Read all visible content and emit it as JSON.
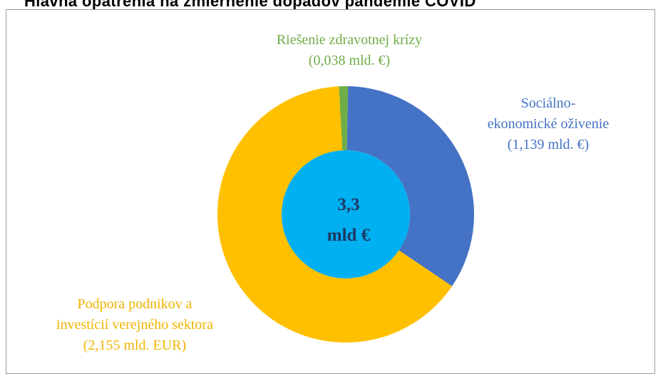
{
  "header": {
    "title_fragment": "Hlavná opatrenia na zmiernenie dopadov pandémie COVID"
  },
  "chart_data": {
    "type": "pie",
    "title": "",
    "center_label": {
      "line1": "3,3",
      "line2": "mld €"
    },
    "slices": [
      {
        "label_lines": [
          "Riešenie zdravotnej krízy",
          "(0,038  mld. €)"
        ],
        "value": 0.038,
        "color": "#70ad47"
      },
      {
        "label_lines": [
          "Sociálno-",
          "ekonomické  oživenie",
          "(1,139  mld. €)"
        ],
        "value": 1.139,
        "color": "#4472c4"
      },
      {
        "label_lines": [
          "Podpora podnikov a",
          "investícií verejného sektora",
          "(2,155  mld. EUR)"
        ],
        "value": 2.155,
        "color": "#ffc000"
      }
    ],
    "center_color": "#00b0f0",
    "center_text_color": "#1f3864"
  }
}
